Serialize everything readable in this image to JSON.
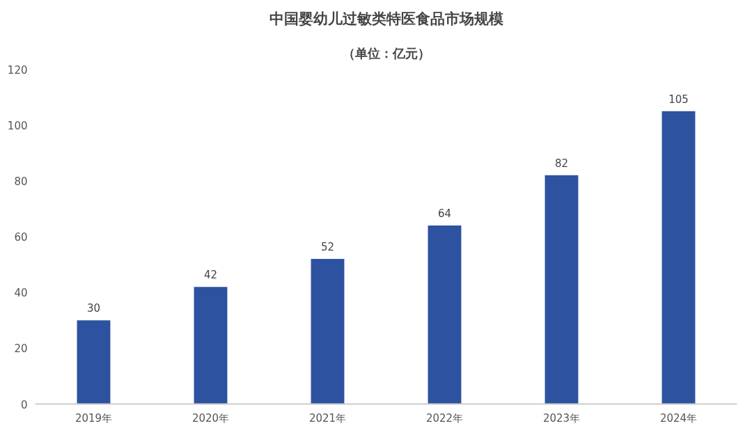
{
  "chart_data": {
    "type": "bar",
    "title": "中国婴幼儿过敏类特医食品市场规模",
    "subtitle": "（单位：亿元）",
    "categories": [
      "2019年",
      "2020年",
      "2021年",
      "2022年",
      "2023年",
      "2024年"
    ],
    "values": [
      30,
      42,
      52,
      64,
      82,
      105
    ],
    "color": "#2d52a0",
    "ylim": [
      0,
      120
    ],
    "yticks": [
      0,
      20,
      40,
      60,
      80,
      100,
      120
    ],
    "grid": false,
    "data_labels": true
  }
}
